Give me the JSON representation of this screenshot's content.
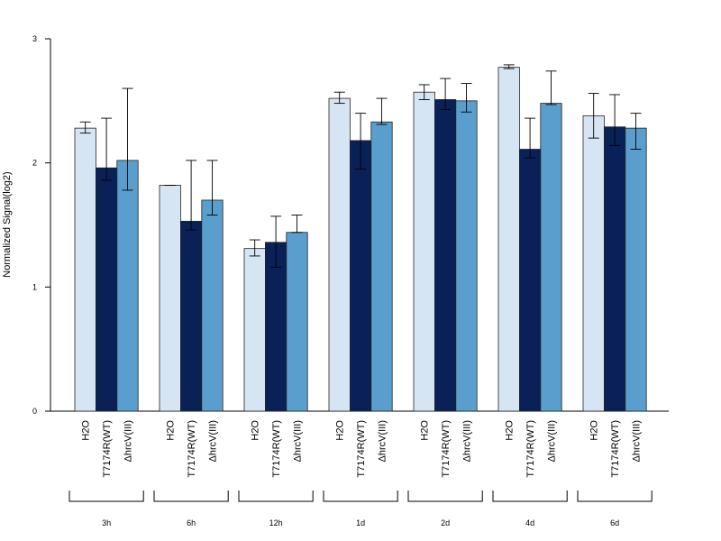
{
  "chart_data": {
    "type": "bar",
    "ylabel": "Normalized Signal(log2)",
    "ylim": [
      0,
      3
    ],
    "yticks": [
      0,
      1,
      2,
      3
    ],
    "groups": [
      "3h",
      "6h",
      "12h",
      "1d",
      "2d",
      "4d",
      "6d"
    ],
    "series": [
      {
        "name": "H2O",
        "color": "#d6e5f4",
        "values": [
          2.28,
          1.82,
          1.31,
          2.52,
          2.57,
          2.77,
          2.38
        ],
        "err_low": [
          2.24,
          1.82,
          1.25,
          2.48,
          2.51,
          2.76,
          2.2
        ],
        "err_high": [
          2.33,
          1.82,
          1.38,
          2.57,
          2.63,
          2.79,
          2.56
        ]
      },
      {
        "name": "T7174R(WT)",
        "color": "#0a2157",
        "values": [
          1.96,
          1.53,
          1.36,
          2.18,
          2.51,
          2.11,
          2.29
        ],
        "err_low": [
          1.86,
          1.46,
          1.16,
          1.95,
          2.43,
          2.04,
          2.14
        ],
        "err_high": [
          2.36,
          2.02,
          1.57,
          2.4,
          2.68,
          2.36,
          2.55
        ]
      },
      {
        "name": "ΔhrcV(III)",
        "color": "#5a9ecd",
        "values": [
          2.02,
          1.7,
          1.44,
          2.33,
          2.5,
          2.48,
          2.28
        ],
        "err_low": [
          1.78,
          1.58,
          1.44,
          2.31,
          2.41,
          2.47,
          2.11
        ],
        "err_high": [
          2.6,
          2.02,
          1.58,
          2.52,
          2.64,
          2.74,
          2.4
        ]
      }
    ],
    "grid": false,
    "legend": "none"
  }
}
